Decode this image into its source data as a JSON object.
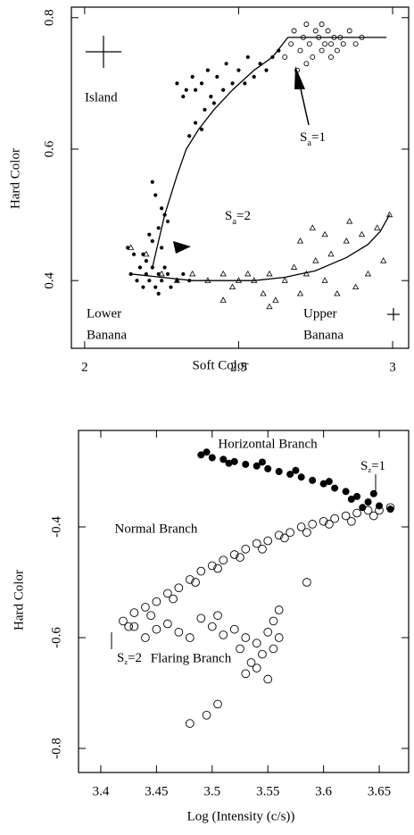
{
  "chart_data": [
    {
      "type": "scatter",
      "xlabel": "Soft Color",
      "ylabel": "Hard Color",
      "xlim": [
        1.957,
        3.052
      ],
      "ylim": [
        0.297,
        0.816
      ],
      "xticks": [
        2,
        2.5,
        3
      ],
      "yticks": [
        0.4,
        0.6,
        0.8
      ],
      "annotations": [
        {
          "lines": [
            "Island"
          ]
        },
        {
          "text": "S",
          "sub": "a",
          "tail": "=1"
        },
        {
          "text": "S",
          "sub": "a",
          "tail": "=2"
        },
        {
          "lines": [
            "Lower",
            "Banana"
          ]
        },
        {
          "lines": [
            "Upper",
            "Banana"
          ]
        }
      ],
      "series": [
        {
          "marker": "filled-circle",
          "color": "#000000",
          "x": [
            2.3,
            2.32,
            2.33,
            2.35,
            2.36,
            2.38,
            2.4,
            2.41,
            2.43,
            2.45,
            2.46,
            2.48,
            2.5,
            2.52,
            2.53,
            2.55,
            2.57,
            2.59,
            2.61,
            2.63,
            2.34,
            2.36,
            2.38,
            2.42,
            2.39,
            2.22,
            2.24,
            2.25,
            2.23,
            2.26,
            2.27,
            2.21,
            2.25,
            2.19,
            2.22,
            2.15,
            2.17,
            2.18,
            2.19,
            2.2,
            2.21,
            2.22,
            2.23,
            2.24,
            2.25,
            2.26,
            2.27,
            2.28,
            2.3,
            2.32,
            2.34,
            2.14,
            2.16,
            2.2,
            2.24
          ],
          "y": [
            0.7,
            0.68,
            0.69,
            0.71,
            0.69,
            0.7,
            0.72,
            0.68,
            0.71,
            0.69,
            0.73,
            0.7,
            0.72,
            0.7,
            0.74,
            0.71,
            0.73,
            0.72,
            0.74,
            0.75,
            0.62,
            0.64,
            0.63,
            0.67,
            0.66,
            0.46,
            0.48,
            0.51,
            0.53,
            0.5,
            0.49,
            0.47,
            0.45,
            0.44,
            0.55,
            0.41,
            0.4,
            0.42,
            0.39,
            0.41,
            0.4,
            0.42,
            0.39,
            0.41,
            0.4,
            0.42,
            0.41,
            0.39,
            0.4,
            0.41,
            0.4,
            0.45,
            0.44,
            0.43,
            0.38
          ]
        },
        {
          "marker": "open-circle",
          "color": "#000000",
          "x": [
            2.65,
            2.67,
            2.68,
            2.7,
            2.71,
            2.72,
            2.73,
            2.74,
            2.75,
            2.76,
            2.77,
            2.78,
            2.79,
            2.8,
            2.81,
            2.82,
            2.83,
            2.84,
            2.86,
            2.88,
            2.72,
            2.69,
            2.77,
            2.8,
            2.9
          ],
          "y": [
            0.74,
            0.76,
            0.78,
            0.75,
            0.77,
            0.79,
            0.76,
            0.74,
            0.78,
            0.77,
            0.75,
            0.76,
            0.78,
            0.76,
            0.77,
            0.75,
            0.77,
            0.76,
            0.78,
            0.76,
            0.73,
            0.72,
            0.79,
            0.74,
            0.77
          ]
        },
        {
          "marker": "triangle",
          "color": "#000000",
          "x": [
            2.15,
            2.2,
            2.25,
            2.3,
            2.35,
            2.4,
            2.45,
            2.48,
            2.5,
            2.53,
            2.55,
            2.58,
            2.6,
            2.62,
            2.65,
            2.68,
            2.7,
            2.72,
            2.75,
            2.78,
            2.8,
            2.82,
            2.85,
            2.88,
            2.9,
            2.92,
            2.95,
            2.97,
            2.99,
            2.78,
            2.74,
            2.7,
            2.86,
            2.6,
            2.45
          ],
          "y": [
            0.45,
            0.44,
            0.41,
            0.4,
            0.41,
            0.4,
            0.41,
            0.39,
            0.4,
            0.41,
            0.4,
            0.38,
            0.41,
            0.37,
            0.4,
            0.42,
            0.38,
            0.41,
            0.43,
            0.4,
            0.44,
            0.38,
            0.46,
            0.39,
            0.47,
            0.41,
            0.48,
            0.43,
            0.5,
            0.47,
            0.48,
            0.46,
            0.49,
            0.36,
            0.37
          ]
        }
      ],
      "curves": [
        {
          "color": "#000000",
          "x": [
            2.22,
            2.24,
            2.26,
            2.3,
            2.33,
            2.37,
            2.42,
            2.48,
            2.55,
            2.61,
            2.66,
            2.8,
            2.98
          ],
          "y": [
            0.42,
            0.46,
            0.5,
            0.56,
            0.6,
            0.63,
            0.66,
            0.69,
            0.72,
            0.74,
            0.77,
            0.77,
            0.77
          ]
        },
        {
          "color": "#000000",
          "x": [
            2.15,
            2.25,
            2.35,
            2.45,
            2.55,
            2.65,
            2.75,
            2.85,
            2.92,
            2.96,
            2.99
          ],
          "y": [
            0.41,
            0.405,
            0.4,
            0.4,
            0.4,
            0.405,
            0.415,
            0.435,
            0.455,
            0.475,
            0.5
          ]
        }
      ]
    },
    {
      "type": "scatter",
      "xlabel": "Log (Intensity (c/s))",
      "ylabel": "Hard Color",
      "xlim": [
        3.38,
        3.6764
      ],
      "ylim": [
        -0.8435,
        -0.2258
      ],
      "xticks": [
        3.4,
        3.45,
        3.5,
        3.55,
        3.6,
        3.65
      ],
      "yticks": [
        -0.8,
        -0.6,
        -0.4
      ],
      "annotations": [
        {
          "lines": [
            "Horizontal Branch"
          ]
        },
        {
          "text": "S",
          "sub": "z",
          "tail": "=1"
        },
        {
          "lines": [
            "Normal Branch"
          ]
        },
        {
          "text": "S",
          "sub": "z",
          "tail": "=2"
        },
        {
          "lines": [
            "Flaring Branch"
          ]
        }
      ],
      "series": [
        {
          "marker": "filled-circle",
          "color": "#000000",
          "x": [
            3.49,
            3.5,
            3.51,
            3.52,
            3.53,
            3.54,
            3.55,
            3.56,
            3.57,
            3.58,
            3.59,
            3.6,
            3.61,
            3.62,
            3.63,
            3.64,
            3.65,
            3.66,
            3.495,
            3.515,
            3.545,
            3.575,
            3.605,
            3.625,
            3.645,
            3.635
          ],
          "y": [
            -0.27,
            -0.275,
            -0.278,
            -0.282,
            -0.287,
            -0.29,
            -0.295,
            -0.3,
            -0.305,
            -0.31,
            -0.316,
            -0.322,
            -0.33,
            -0.336,
            -0.345,
            -0.355,
            -0.362,
            -0.368,
            -0.265,
            -0.285,
            -0.283,
            -0.298,
            -0.318,
            -0.35,
            -0.34,
            -0.365
          ]
        },
        {
          "marker": "open-circle",
          "color": "#000000",
          "x": [
            3.42,
            3.43,
            3.44,
            3.45,
            3.46,
            3.47,
            3.48,
            3.49,
            3.5,
            3.51,
            3.52,
            3.53,
            3.54,
            3.55,
            3.56,
            3.57,
            3.58,
            3.59,
            3.6,
            3.61,
            3.62,
            3.63,
            3.64,
            3.65,
            3.66,
            3.425,
            3.445,
            3.465,
            3.485,
            3.505,
            3.525,
            3.545,
            3.565,
            3.585,
            3.605,
            3.625,
            3.645,
            3.585,
            3.43,
            3.44,
            3.45,
            3.46,
            3.47,
            3.48,
            3.49,
            3.5,
            3.505,
            3.51,
            3.52,
            3.525,
            3.53,
            3.535,
            3.54,
            3.545,
            3.55,
            3.555,
            3.56,
            3.53,
            3.54,
            3.55,
            3.555,
            3.56,
            3.48,
            3.495,
            3.505
          ],
          "y": [
            -0.57,
            -0.555,
            -0.545,
            -0.535,
            -0.52,
            -0.51,
            -0.495,
            -0.48,
            -0.47,
            -0.46,
            -0.45,
            -0.44,
            -0.43,
            -0.425,
            -0.415,
            -0.41,
            -0.4,
            -0.395,
            -0.39,
            -0.385,
            -0.38,
            -0.375,
            -0.37,
            -0.37,
            -0.365,
            -0.58,
            -0.56,
            -0.53,
            -0.5,
            -0.475,
            -0.455,
            -0.44,
            -0.42,
            -0.41,
            -0.395,
            -0.39,
            -0.38,
            -0.5,
            -0.58,
            -0.6,
            -0.585,
            -0.575,
            -0.59,
            -0.6,
            -0.565,
            -0.58,
            -0.56,
            -0.595,
            -0.585,
            -0.62,
            -0.6,
            -0.645,
            -0.61,
            -0.63,
            -0.59,
            -0.62,
            -0.6,
            -0.665,
            -0.655,
            -0.675,
            -0.57,
            -0.55,
            -0.755,
            -0.74,
            -0.72
          ]
        }
      ]
    }
  ]
}
